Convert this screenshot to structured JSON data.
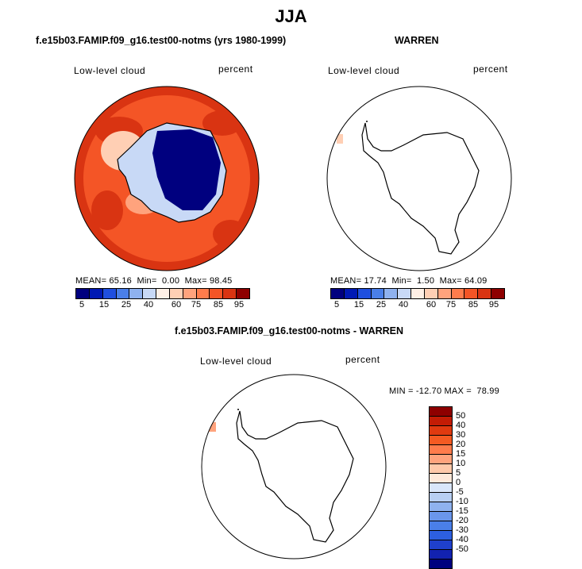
{
  "main_title": "JJA",
  "panels": [
    {
      "title": "f.e15b03.FAMIP.f09_g16.test00-notms (yrs 1980-1999)",
      "variable": "Low-level cloud",
      "units": "percent",
      "stats": "MEAN= 65.16  Min=  0.00  Max= 98.45"
    },
    {
      "title": "WARREN",
      "variable": "Low-level cloud",
      "units": "percent",
      "stats": "MEAN= 17.74  Min=  1.50  Max= 64.09"
    },
    {
      "title": "f.e15b03.FAMIP.f09_g16.test00-notms - WARREN",
      "variable": "Low-level cloud",
      "units": "percent",
      "stats": "MIN = -12.70 MAX =  78.99"
    }
  ],
  "colorbar": {
    "colors": [
      "#00007f",
      "#0019b4",
      "#1f4fdf",
      "#4a7fe8",
      "#8fb2ef",
      "#c8d9f6",
      "#fff0e6",
      "#ffcfb4",
      "#ffa37d",
      "#ff7c4c",
      "#f45526",
      "#d93412",
      "#8e0000"
    ],
    "ticks": [
      "5",
      "15",
      "25",
      "40",
      "60",
      "75",
      "85",
      "95"
    ]
  },
  "diff_colorbar": {
    "colors": [
      "#8e0000",
      "#c31c05",
      "#e03a10",
      "#f55a22",
      "#ff7c4c",
      "#ffa37d",
      "#ffc9aa",
      "#ffe9da",
      "#d9e6fa",
      "#b8cff3",
      "#8fb2ef",
      "#6a96eb",
      "#4a7fe8",
      "#2d5fe0",
      "#1f40cc",
      "#1222b0",
      "#00007f"
    ],
    "ticks": [
      "50",
      "40",
      "30",
      "20",
      "15",
      "10",
      "5",
      "0",
      "-5",
      "-10",
      "-15",
      "-20",
      "-30",
      "-40",
      "-50"
    ]
  }
}
